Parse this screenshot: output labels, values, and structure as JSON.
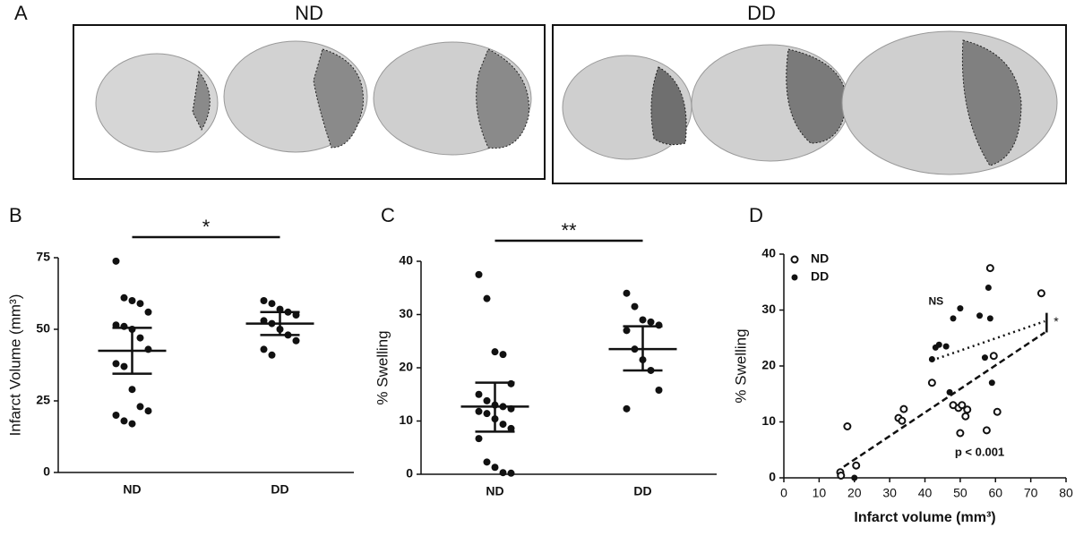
{
  "panel_a": {
    "panel": "A",
    "groups": [
      "ND",
      "DD"
    ]
  },
  "chart_data": [
    {
      "type": "dotplot",
      "panel": "B",
      "y_label": "Infarct Volume (mm³)",
      "categories": [
        "ND",
        "DD"
      ],
      "points": [
        [
          73.8,
          61,
          60,
          59,
          56,
          51.5,
          51,
          50,
          47,
          43,
          38,
          37,
          29,
          23,
          21.5,
          20,
          18,
          17
        ],
        [
          60,
          59,
          57,
          56,
          55,
          53,
          52,
          50,
          48,
          46,
          43,
          41
        ]
      ],
      "mean": [
        42.5,
        52
      ],
      "error_low": [
        34.5,
        48
      ],
      "error_high": [
        50.5,
        56
      ],
      "significance": "*",
      "ylim": [
        0,
        75
      ],
      "yticks": [
        0,
        25,
        50,
        75
      ],
      "color": "#111111"
    },
    {
      "type": "dotplot",
      "panel": "C",
      "y_label": "% Swelling",
      "categories": [
        "ND",
        "DD"
      ],
      "points": [
        [
          37.5,
          33,
          23,
          22.5,
          17,
          15,
          13.8,
          13,
          12.7,
          12.3,
          11.8,
          11.4,
          10.4,
          9.4,
          8.6,
          6.7,
          2.3,
          1.3,
          0.3,
          0.2
        ],
        [
          34,
          31.5,
          29,
          28.6,
          28,
          27,
          23.5,
          21.5,
          19.5,
          15.8,
          12.3
        ]
      ],
      "mean": [
        12.7,
        23.5
      ],
      "error_low": [
        8,
        19.5
      ],
      "error_high": [
        17.2,
        27.8
      ],
      "significance": "**",
      "ylim": [
        0,
        40
      ],
      "yticks": [
        0,
        10,
        20,
        30,
        40
      ],
      "color": "#111111"
    },
    {
      "type": "scatter",
      "panel": "D",
      "x_label": "Infarct volume (mm³)",
      "y_label": "% Swelling",
      "series": [
        {
          "name": "ND",
          "marker": "open",
          "color": "#111111",
          "x": [
            16,
            16.2,
            18,
            20.5,
            32.5,
            33.5,
            34,
            42,
            48,
            49.5,
            50,
            50.5,
            51.5,
            52,
            57.5,
            58.5,
            59.5,
            60.5,
            73
          ],
          "values": [
            1,
            0.4,
            9.2,
            2.2,
            10.7,
            10.2,
            12.3,
            17,
            13,
            12.5,
            8,
            13,
            11,
            12.2,
            8.5,
            37.5,
            21.8,
            11.8,
            33
          ]
        },
        {
          "name": "DD",
          "marker": "filled",
          "color": "#111111",
          "x": [
            20,
            42,
            43,
            44,
            46,
            47,
            48,
            50,
            55.5,
            57,
            58,
            58.5,
            59
          ],
          "values": [
            0,
            21.2,
            23.3,
            23.8,
            23.5,
            15.3,
            28.5,
            30.3,
            29,
            21.5,
            34,
            28.5,
            17
          ]
        }
      ],
      "fits": [
        {
          "style": "dashed",
          "x": [
            17,
            74
          ],
          "y": [
            2,
            26
          ]
        },
        {
          "style": "dotted",
          "x": [
            42,
            74
          ],
          "y": [
            21,
            28
          ]
        }
      ],
      "annotations": [
        "NS",
        "*",
        "p < 0.001"
      ],
      "xlim": [
        0,
        80
      ],
      "xticks": [
        0,
        10,
        20,
        30,
        40,
        50,
        60,
        70,
        80
      ],
      "ylim": [
        0,
        40
      ],
      "yticks": [
        0,
        10,
        20,
        30,
        40
      ],
      "legend": "upper left"
    }
  ]
}
